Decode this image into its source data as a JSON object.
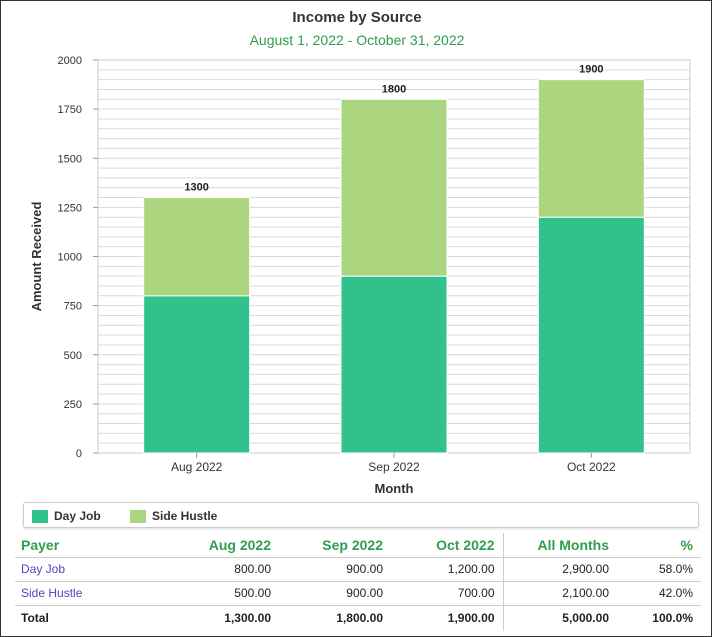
{
  "chart_data": {
    "type": "bar",
    "stacked": true,
    "title": "Income by Source",
    "subtitle": "August 1, 2022 - October 31, 2022",
    "xlabel": "Month",
    "ylabel": "Amount Received",
    "categories": [
      "Aug 2022",
      "Sep 2022",
      "Oct 2022"
    ],
    "series": [
      {
        "name": "Day Job",
        "values": [
          800,
          900,
          1200
        ],
        "color": "#30c18c"
      },
      {
        "name": "Side Hustle",
        "values": [
          500,
          900,
          700
        ],
        "color": "#acd580"
      }
    ],
    "totals": [
      1300,
      1800,
      1900
    ],
    "ylim": [
      0,
      2000
    ],
    "yticks": [
      0,
      250,
      500,
      750,
      1000,
      1250,
      1500,
      1750,
      2000
    ],
    "grid": true,
    "legend_position": "bottom"
  },
  "legend": {
    "items": [
      {
        "label": "Day Job",
        "color": "#30c18c"
      },
      {
        "label": "Side Hustle",
        "color": "#acd580"
      }
    ]
  },
  "table": {
    "headers": [
      "Payer",
      "Aug 2022",
      "Sep 2022",
      "Oct 2022",
      "All Months",
      "%"
    ],
    "rows": [
      {
        "payer": "Day Job",
        "cells": [
          "800.00",
          "900.00",
          "1,200.00",
          "2,900.00",
          "58.0%"
        ]
      },
      {
        "payer": "Side Hustle",
        "cells": [
          "500.00",
          "900.00",
          "700.00",
          "2,100.00",
          "42.0%"
        ]
      }
    ],
    "total": {
      "label": "Total",
      "cells": [
        "1,300.00",
        "1,800.00",
        "1,900.00",
        "5,000.00",
        "100.0%"
      ]
    }
  }
}
